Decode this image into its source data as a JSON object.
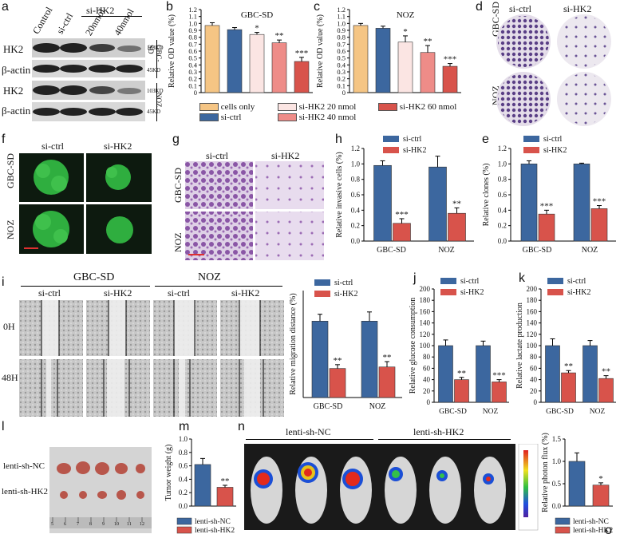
{
  "panel_letters": {
    "a": "a",
    "b": "b",
    "c": "c",
    "d": "d",
    "e": "e",
    "f": "f",
    "g": "g",
    "h": "h",
    "i": "i",
    "j": "j",
    "k": "k",
    "l": "l",
    "m": "m",
    "n": "n",
    "o": "o"
  },
  "colors": {
    "orange": "#f5c584",
    "blue": "#3c679f",
    "pink_light": "#fbe5e3",
    "salmon": "#ee8c88",
    "red": "#d8534b",
    "green": "#1d6e2a",
    "purple": "#7a3e8e"
  },
  "a": {
    "columns": [
      "Control",
      "si-ctrl",
      "20nmol",
      "40nmol"
    ],
    "group": "si-HK2",
    "rows": [
      "HK2",
      "β-actin",
      "HK2",
      "β-actin"
    ],
    "kd": [
      "103KD",
      "45KD",
      "103KD",
      "45KD"
    ],
    "cell_lines": [
      "GBC-SD",
      "NOZ"
    ]
  },
  "d": {
    "cols": [
      "si-ctrl",
      "si-HK2"
    ],
    "rows": [
      "GBC-SD",
      "NOZ"
    ]
  },
  "f": {
    "cols": [
      "si-ctrl",
      "si-HK2"
    ],
    "rows": [
      "GBC-SD",
      "NOZ"
    ]
  },
  "g": {
    "cols": [
      "si-ctrl",
      "si-HK2"
    ],
    "rows": [
      "GBC-SD",
      "NOZ"
    ]
  },
  "i": {
    "groups": [
      "GBC-SD",
      "NOZ"
    ],
    "cols": [
      "si-ctrl",
      "si-HK2",
      "si-ctrl",
      "si-HK2"
    ],
    "rows": [
      "0H",
      "48H"
    ]
  },
  "l": {
    "rows": [
      "lenti-sh-NC",
      "lenti-sh-HK2"
    ],
    "ruler": [
      "5",
      "6",
      "7",
      "8",
      "9",
      "10",
      "11",
      "12"
    ]
  },
  "n": {
    "groups": [
      "lenti-sh-NC",
      "lenti-sh-HK2"
    ]
  },
  "chart_data": [
    {
      "id": "b",
      "type": "bar",
      "title": "GBC-SD",
      "ylabel": "Relative OD value (%)",
      "ylim": [
        0,
        1.2
      ],
      "yticks": [
        "0",
        "0.1",
        "0.2",
        "0.3",
        "0.4",
        "0.5",
        "0.6",
        "0.7",
        "0.8",
        "0.9",
        "1.0",
        "1.1",
        "1.2"
      ],
      "categories": [
        "cells only",
        "si-ctrl",
        "si-HK2 20 nmol",
        "si-HK2 40 nmol",
        "si-HK2 60 nmol"
      ],
      "values": [
        0.97,
        0.91,
        0.84,
        0.72,
        0.45
      ],
      "errors": [
        0.04,
        0.03,
        0.03,
        0.04,
        0.06
      ],
      "sig": [
        "",
        "",
        "*",
        "**",
        "***"
      ]
    },
    {
      "id": "c",
      "type": "bar",
      "title": "NOZ",
      "ylabel": "Relative OD value (%)",
      "ylim": [
        0,
        1.2
      ],
      "yticks": [
        "0",
        "0.1",
        "0.2",
        "0.3",
        "0.4",
        "0.5",
        "0.6",
        "0.7",
        "0.8",
        "0.9",
        "1.0",
        "1.1",
        "1.2"
      ],
      "categories": [
        "cells only",
        "si-ctrl",
        "si-HK2 20 nmol",
        "si-HK2 40 nmol",
        "si-HK2 60 nmol"
      ],
      "values": [
        0.97,
        0.93,
        0.73,
        0.58,
        0.38
      ],
      "errors": [
        0.03,
        0.03,
        0.09,
        0.1,
        0.04
      ],
      "sig": [
        "",
        "",
        "*",
        "**",
        "***"
      ]
    },
    {
      "id": "h",
      "type": "bar",
      "ylabel": "Relative invasive cells (%)",
      "ylim": [
        0,
        1.2
      ],
      "yticks": [
        "0.0",
        "0.2",
        "0.4",
        "0.6",
        "0.8",
        "1.0",
        "1.2"
      ],
      "categories": [
        "GBC-SD",
        "NOZ"
      ],
      "series": [
        {
          "name": "si-ctrl",
          "values": [
            0.98,
            0.96
          ],
          "errors": [
            0.06,
            0.14
          ]
        },
        {
          "name": "si-HK2",
          "values": [
            0.23,
            0.36
          ],
          "errors": [
            0.06,
            0.07
          ]
        }
      ],
      "sig": [
        "***",
        "**"
      ]
    },
    {
      "id": "e",
      "type": "bar",
      "ylabel": "Relative clones (%)",
      "ylim": [
        0,
        1.2
      ],
      "yticks": [
        "0.0",
        "0.2",
        "0.4",
        "0.6",
        "0.8",
        "1.0",
        "1.2"
      ],
      "categories": [
        "GBC-SD",
        "NOZ"
      ],
      "series": [
        {
          "name": "si-ctrl",
          "values": [
            1.0,
            1.0
          ],
          "errors": [
            0.04,
            0.01
          ]
        },
        {
          "name": "si-HK2",
          "values": [
            0.35,
            0.42
          ],
          "errors": [
            0.05,
            0.04
          ]
        }
      ],
      "sig": [
        "***",
        "***"
      ]
    },
    {
      "id": "i",
      "type": "bar",
      "ylabel": "Relative migration distance (%)",
      "ylim": [
        0,
        1.4
      ],
      "yticks": [],
      "categories": [
        "GBC-SD",
        "NOZ"
      ],
      "series": [
        {
          "name": "si-ctrl",
          "values": [
            1.0,
            1.0
          ],
          "errors": [
            0.09,
            0.12
          ]
        },
        {
          "name": "si-HK2",
          "values": [
            0.38,
            0.4
          ],
          "errors": [
            0.05,
            0.07
          ]
        }
      ],
      "sig": [
        "**",
        "**"
      ]
    },
    {
      "id": "j",
      "type": "bar",
      "ylabel": "Relative glucose consumption",
      "ylim": [
        0,
        200
      ],
      "yticks": [
        "0",
        "20",
        "40",
        "60",
        "80",
        "100",
        "120",
        "140",
        "160",
        "180",
        "200"
      ],
      "categories": [
        "GBC-SD",
        "NOZ"
      ],
      "series": [
        {
          "name": "si-ctrl",
          "values": [
            100,
            100
          ],
          "errors": [
            10,
            8
          ]
        },
        {
          "name": "si-HK2",
          "values": [
            40,
            36
          ],
          "errors": [
            4,
            4
          ]
        }
      ],
      "sig": [
        "**",
        "***"
      ]
    },
    {
      "id": "k",
      "type": "bar",
      "ylabel": "Relative lactate production",
      "ylim": [
        0,
        200
      ],
      "yticks": [
        "0",
        "20",
        "40",
        "60",
        "80",
        "100",
        "120",
        "140",
        "160",
        "180",
        "200"
      ],
      "categories": [
        "GBC-SD",
        "NOZ"
      ],
      "series": [
        {
          "name": "si-ctrl",
          "values": [
            100,
            100
          ],
          "errors": [
            12,
            9
          ]
        },
        {
          "name": "si-HK2",
          "values": [
            52,
            42
          ],
          "errors": [
            4,
            5
          ]
        }
      ],
      "sig": [
        "**",
        "**"
      ]
    },
    {
      "id": "m",
      "type": "bar",
      "ylabel": "Tumor weight (g)",
      "ylim": [
        0,
        1.0
      ],
      "yticks": [
        "0.0",
        "0.2",
        "0.4",
        "0.6",
        "0.8",
        "1.0"
      ],
      "categories": [
        "lenti-sh-NC",
        "lenti-sh-HK2"
      ],
      "values": [
        0.62,
        0.28
      ],
      "errors": [
        0.09,
        0.03
      ],
      "sig": [
        "",
        "**"
      ]
    },
    {
      "id": "o",
      "type": "bar",
      "ylabel": "Relative photon flux (%)",
      "ylim": [
        0,
        1.5
      ],
      "yticks": [
        "0.0",
        "0.5",
        "1.0",
        "1.5"
      ],
      "categories": [
        "lenti-sh-NC",
        "lenti-sh-HK2"
      ],
      "values": [
        1.0,
        0.47
      ],
      "errors": [
        0.19,
        0.05
      ],
      "sig": [
        "",
        "*"
      ]
    }
  ]
}
